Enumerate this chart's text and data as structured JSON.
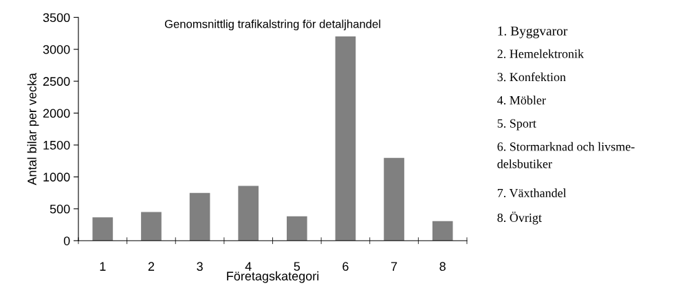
{
  "chart_data": {
    "type": "bar",
    "title": "Genomsnittlig trafikalstring för detaljhandel",
    "xlabel": "Företagskategori",
    "ylabel": "Antal bilar per vecka",
    "categories": [
      "1",
      "2",
      "3",
      "4",
      "5",
      "6",
      "7",
      "8"
    ],
    "values": [
      366,
      451,
      749,
      859,
      383,
      3202,
      1298,
      308
    ],
    "color": "#808080",
    "ylim": [
      0,
      3500
    ],
    "yticks": [
      0,
      500,
      1000,
      1500,
      2000,
      2500,
      3000,
      3500
    ],
    "grid": false,
    "legend": false,
    "annotations": [
      "1. Byggvaror",
      "2. Hemelektronik",
      "3. Konfektion",
      "4. Möbler",
      "5. Sport",
      "6. Stormarknad och livsme-\ndelsbutiker",
      "7. Växthandel",
      "8. Övrigt"
    ]
  }
}
